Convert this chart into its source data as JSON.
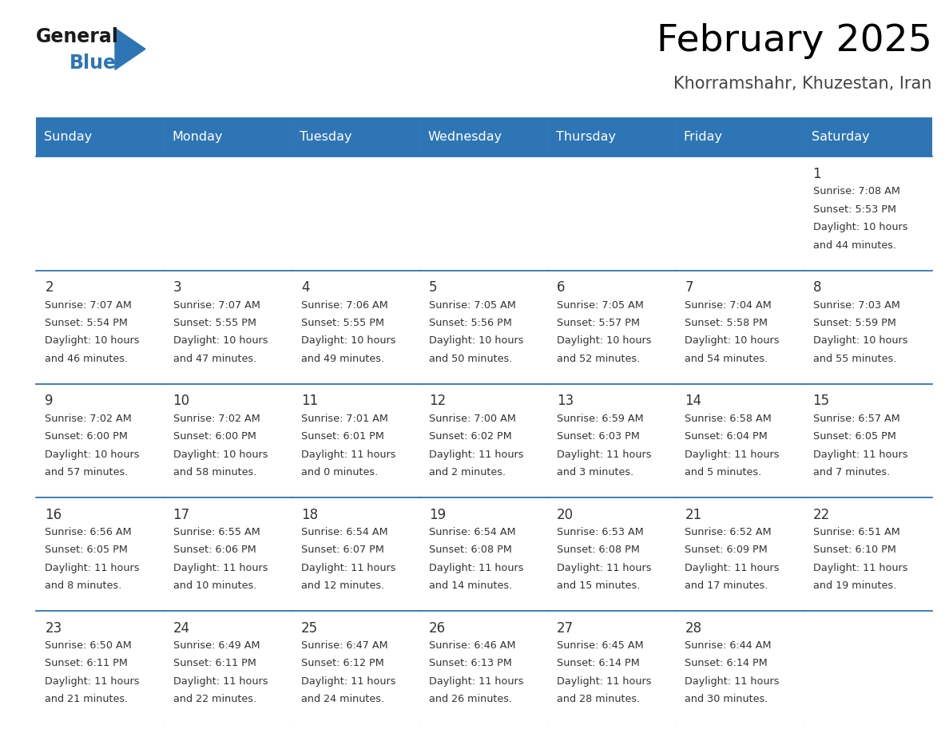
{
  "title": "February 2025",
  "subtitle": "Khorramshahr, Khuzestan, Iran",
  "days_of_week": [
    "Sunday",
    "Monday",
    "Tuesday",
    "Wednesday",
    "Thursday",
    "Friday",
    "Saturday"
  ],
  "header_bg": "#2E75B6",
  "header_text": "#FFFFFF",
  "cell_border_color": "#2E75B6",
  "day_number_color": "#333333",
  "cell_text_color": "#333333",
  "title_color": "#000000",
  "subtitle_color": "#444444",
  "calendar": [
    [
      {
        "day": null
      },
      {
        "day": null
      },
      {
        "day": null
      },
      {
        "day": null
      },
      {
        "day": null
      },
      {
        "day": null
      },
      {
        "day": 1,
        "sunrise": "7:08 AM",
        "sunset": "5:53 PM",
        "daylight_line1": "Daylight: 10 hours",
        "daylight_line2": "and 44 minutes."
      }
    ],
    [
      {
        "day": 2,
        "sunrise": "7:07 AM",
        "sunset": "5:54 PM",
        "daylight_line1": "Daylight: 10 hours",
        "daylight_line2": "and 46 minutes."
      },
      {
        "day": 3,
        "sunrise": "7:07 AM",
        "sunset": "5:55 PM",
        "daylight_line1": "Daylight: 10 hours",
        "daylight_line2": "and 47 minutes."
      },
      {
        "day": 4,
        "sunrise": "7:06 AM",
        "sunset": "5:55 PM",
        "daylight_line1": "Daylight: 10 hours",
        "daylight_line2": "and 49 minutes."
      },
      {
        "day": 5,
        "sunrise": "7:05 AM",
        "sunset": "5:56 PM",
        "daylight_line1": "Daylight: 10 hours",
        "daylight_line2": "and 50 minutes."
      },
      {
        "day": 6,
        "sunrise": "7:05 AM",
        "sunset": "5:57 PM",
        "daylight_line1": "Daylight: 10 hours",
        "daylight_line2": "and 52 minutes."
      },
      {
        "day": 7,
        "sunrise": "7:04 AM",
        "sunset": "5:58 PM",
        "daylight_line1": "Daylight: 10 hours",
        "daylight_line2": "and 54 minutes."
      },
      {
        "day": 8,
        "sunrise": "7:03 AM",
        "sunset": "5:59 PM",
        "daylight_line1": "Daylight: 10 hours",
        "daylight_line2": "and 55 minutes."
      }
    ],
    [
      {
        "day": 9,
        "sunrise": "7:02 AM",
        "sunset": "6:00 PM",
        "daylight_line1": "Daylight: 10 hours",
        "daylight_line2": "and 57 minutes."
      },
      {
        "day": 10,
        "sunrise": "7:02 AM",
        "sunset": "6:00 PM",
        "daylight_line1": "Daylight: 10 hours",
        "daylight_line2": "and 58 minutes."
      },
      {
        "day": 11,
        "sunrise": "7:01 AM",
        "sunset": "6:01 PM",
        "daylight_line1": "Daylight: 11 hours",
        "daylight_line2": "and 0 minutes."
      },
      {
        "day": 12,
        "sunrise": "7:00 AM",
        "sunset": "6:02 PM",
        "daylight_line1": "Daylight: 11 hours",
        "daylight_line2": "and 2 minutes."
      },
      {
        "day": 13,
        "sunrise": "6:59 AM",
        "sunset": "6:03 PM",
        "daylight_line1": "Daylight: 11 hours",
        "daylight_line2": "and 3 minutes."
      },
      {
        "day": 14,
        "sunrise": "6:58 AM",
        "sunset": "6:04 PM",
        "daylight_line1": "Daylight: 11 hours",
        "daylight_line2": "and 5 minutes."
      },
      {
        "day": 15,
        "sunrise": "6:57 AM",
        "sunset": "6:05 PM",
        "daylight_line1": "Daylight: 11 hours",
        "daylight_line2": "and 7 minutes."
      }
    ],
    [
      {
        "day": 16,
        "sunrise": "6:56 AM",
        "sunset": "6:05 PM",
        "daylight_line1": "Daylight: 11 hours",
        "daylight_line2": "and 8 minutes."
      },
      {
        "day": 17,
        "sunrise": "6:55 AM",
        "sunset": "6:06 PM",
        "daylight_line1": "Daylight: 11 hours",
        "daylight_line2": "and 10 minutes."
      },
      {
        "day": 18,
        "sunrise": "6:54 AM",
        "sunset": "6:07 PM",
        "daylight_line1": "Daylight: 11 hours",
        "daylight_line2": "and 12 minutes."
      },
      {
        "day": 19,
        "sunrise": "6:54 AM",
        "sunset": "6:08 PM",
        "daylight_line1": "Daylight: 11 hours",
        "daylight_line2": "and 14 minutes."
      },
      {
        "day": 20,
        "sunrise": "6:53 AM",
        "sunset": "6:08 PM",
        "daylight_line1": "Daylight: 11 hours",
        "daylight_line2": "and 15 minutes."
      },
      {
        "day": 21,
        "sunrise": "6:52 AM",
        "sunset": "6:09 PM",
        "daylight_line1": "Daylight: 11 hours",
        "daylight_line2": "and 17 minutes."
      },
      {
        "day": 22,
        "sunrise": "6:51 AM",
        "sunset": "6:10 PM",
        "daylight_line1": "Daylight: 11 hours",
        "daylight_line2": "and 19 minutes."
      }
    ],
    [
      {
        "day": 23,
        "sunrise": "6:50 AM",
        "sunset": "6:11 PM",
        "daylight_line1": "Daylight: 11 hours",
        "daylight_line2": "and 21 minutes."
      },
      {
        "day": 24,
        "sunrise": "6:49 AM",
        "sunset": "6:11 PM",
        "daylight_line1": "Daylight: 11 hours",
        "daylight_line2": "and 22 minutes."
      },
      {
        "day": 25,
        "sunrise": "6:47 AM",
        "sunset": "6:12 PM",
        "daylight_line1": "Daylight: 11 hours",
        "daylight_line2": "and 24 minutes."
      },
      {
        "day": 26,
        "sunrise": "6:46 AM",
        "sunset": "6:13 PM",
        "daylight_line1": "Daylight: 11 hours",
        "daylight_line2": "and 26 minutes."
      },
      {
        "day": 27,
        "sunrise": "6:45 AM",
        "sunset": "6:14 PM",
        "daylight_line1": "Daylight: 11 hours",
        "daylight_line2": "and 28 minutes."
      },
      {
        "day": 28,
        "sunrise": "6:44 AM",
        "sunset": "6:14 PM",
        "daylight_line1": "Daylight: 11 hours",
        "daylight_line2": "and 30 minutes."
      },
      {
        "day": null
      }
    ]
  ],
  "logo_general_color": "#1a1a1a",
  "logo_blue_color": "#2E75B6",
  "logo_triangle_color": "#2E75B6"
}
